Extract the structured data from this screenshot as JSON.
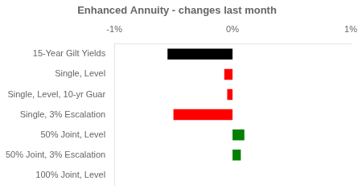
{
  "chart_data": {
    "type": "bar",
    "orientation": "horizontal",
    "title": "Enhanced Annuity - changes last month",
    "categories": [
      "15-Year Gilt Yields",
      "Single, Level",
      "Single, Level, 10-yr Guar",
      "Single, 3% Escalation",
      "50% Joint, Level",
      "50% Joint, 3% Escalation",
      "100% Joint, Level"
    ],
    "values": [
      -0.55,
      -0.07,
      -0.045,
      -0.5,
      0.1,
      0.07,
      0.0
    ],
    "colors": [
      "#000000",
      "#ff0000",
      "#ff0000",
      "#ff0000",
      "#008000",
      "#008000",
      "#000000"
    ],
    "xlim": [
      -1.0,
      1.0
    ],
    "xticks": [
      {
        "value": -1.0,
        "label": "-1%"
      },
      {
        "value": 0.0,
        "label": "0%"
      },
      {
        "value": 1.0,
        "label": "1%"
      }
    ],
    "grid": false
  }
}
